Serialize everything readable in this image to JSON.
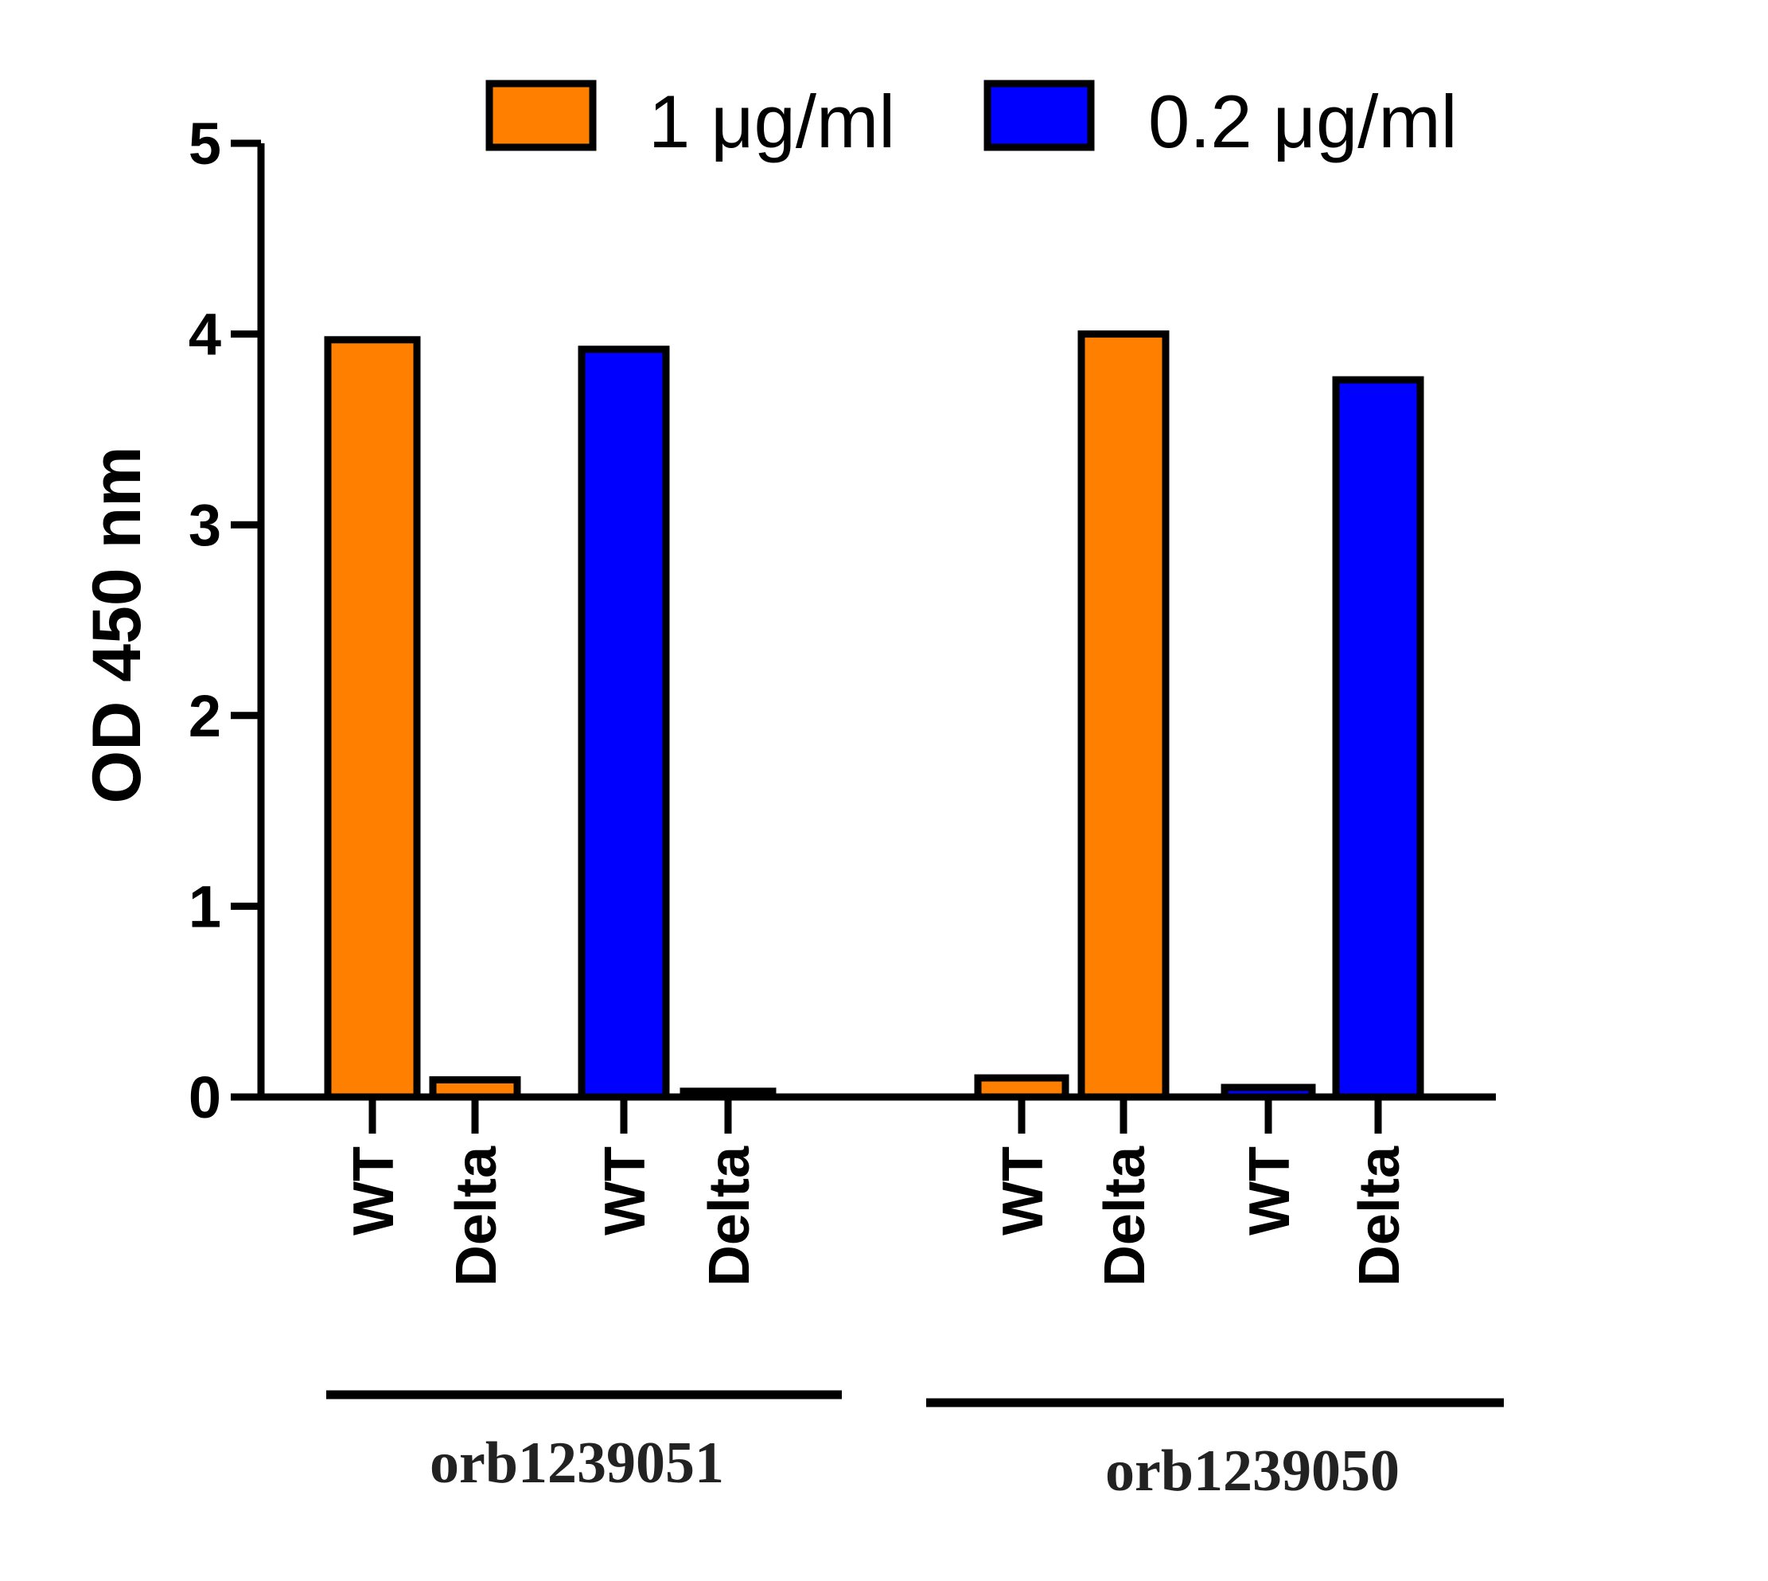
{
  "chart_data": {
    "type": "bar",
    "title": "",
    "xlabel": "",
    "ylabel": "OD 450 nm",
    "ylim": [
      0,
      5
    ],
    "yticks": [
      "0",
      "1",
      "2",
      "3",
      "4",
      "5"
    ],
    "grid": false,
    "legend_position": "top-right",
    "series": [
      {
        "name": "1 μg/ml",
        "color": "#FF8000"
      },
      {
        "name": "0.2 μg/ml",
        "color": "#0000FF"
      }
    ],
    "groups": [
      {
        "label": "orb1239051",
        "bars": [
          {
            "category": "WT",
            "series": "1 μg/ml",
            "value": 3.97
          },
          {
            "category": "Delta",
            "series": "1 μg/ml",
            "value": 0.09
          },
          {
            "category": "WT",
            "series": "0.2 μg/ml",
            "value": 3.92
          },
          {
            "category": "Delta",
            "series": "0.2 μg/ml",
            "value": 0.03
          }
        ]
      },
      {
        "label": "orb1239050",
        "bars": [
          {
            "category": "WT",
            "series": "1 μg/ml",
            "value": 0.1
          },
          {
            "category": "Delta",
            "series": "1 μg/ml",
            "value": 4.0
          },
          {
            "category": "WT",
            "series": "0.2 μg/ml",
            "value": 0.05
          },
          {
            "category": "Delta",
            "series": "0.2 μg/ml",
            "value": 3.76
          }
        ]
      }
    ]
  }
}
